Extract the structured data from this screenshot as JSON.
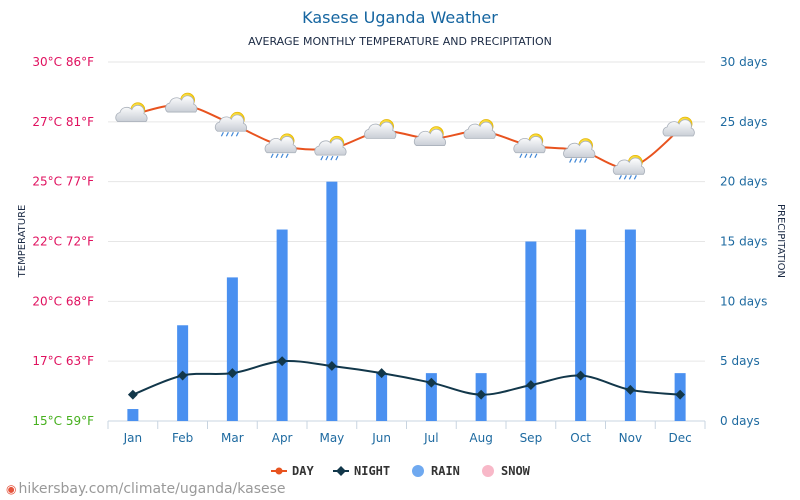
{
  "chart_data": {
    "type": "bar+line",
    "title": "Kasese Uganda Weather",
    "subtitle": "AVERAGE MONTHLY TEMPERATURE AND PRECIPITATION",
    "ylabel_left": "TEMPERATURE",
    "ylabel_right": "PRECIPITATION",
    "categories": [
      "Jan",
      "Feb",
      "Mar",
      "Apr",
      "May",
      "Jun",
      "Jul",
      "Aug",
      "Sep",
      "Oct",
      "Nov",
      "Dec"
    ],
    "left_axis": {
      "range_c": [
        15,
        30
      ],
      "ticks": [
        {
          "c": 30,
          "label": "30°C 86°F",
          "color": "#e0115f"
        },
        {
          "c": 27.5,
          "label": "27°C 81°F",
          "color": "#e0115f"
        },
        {
          "c": 25,
          "label": "25°C 77°F",
          "color": "#e0115f"
        },
        {
          "c": 22.5,
          "label": "22°C 72°F",
          "color": "#e0115f"
        },
        {
          "c": 20,
          "label": "20°C 68°F",
          "color": "#e0115f"
        },
        {
          "c": 17.5,
          "label": "17°C 63°F",
          "color": "#e0115f"
        },
        {
          "c": 15,
          "label": "15°C 59°F",
          "color": "#46b01e"
        }
      ]
    },
    "right_axis": {
      "range": [
        0,
        30
      ],
      "ticks": [
        {
          "v": 30,
          "label": "30 days"
        },
        {
          "v": 25,
          "label": "25 days"
        },
        {
          "v": 20,
          "label": "20 days"
        },
        {
          "v": 15,
          "label": "15 days"
        },
        {
          "v": 10,
          "label": "10 days"
        },
        {
          "v": 5,
          "label": "5 days"
        },
        {
          "v": 0,
          "label": "0 days"
        }
      ]
    },
    "series": [
      {
        "name": "DAY",
        "kind": "line",
        "axis": "left",
        "color": "#e8531f",
        "values": [
          27.8,
          28.2,
          27.4,
          26.5,
          26.4,
          27.1,
          26.8,
          27.1,
          26.5,
          26.3,
          25.6,
          27.2
        ],
        "icons": [
          "sun-cloud",
          "sun-cloud",
          "sun-cloud-rain",
          "sun-cloud-rain",
          "sun-cloud-rain",
          "sun-cloud",
          "sun-cloud",
          "sun-cloud",
          "sun-cloud-rain",
          "sun-cloud-rain",
          "sun-cloud-rain",
          "sun-cloud"
        ]
      },
      {
        "name": "NIGHT",
        "kind": "line",
        "axis": "left",
        "color": "#12374a",
        "values": [
          16.1,
          16.9,
          17.0,
          17.5,
          17.3,
          17.0,
          16.6,
          16.1,
          16.5,
          16.9,
          16.3,
          16.1
        ]
      },
      {
        "name": "RAIN",
        "kind": "bar",
        "axis": "right",
        "color": "#4a90f0",
        "values": [
          1,
          8,
          12,
          16,
          20,
          4,
          4,
          4,
          15,
          16,
          16,
          4
        ]
      },
      {
        "name": "SNOW",
        "kind": "bar",
        "axis": "right",
        "color": "#f8b8c8",
        "values": [
          0,
          0,
          0,
          0,
          0,
          0,
          0,
          0,
          0,
          0,
          0,
          0
        ]
      }
    ],
    "legend_position": "bottom-center",
    "grid": true,
    "right_tick_color": "#1e6aa0",
    "xtick_color": "#1e6aa0"
  },
  "legend": {
    "day": "DAY",
    "night": "NIGHT",
    "rain": "RAIN",
    "snow": "SNOW"
  },
  "source": "hikersbay.com/climate/uganda/kasese"
}
